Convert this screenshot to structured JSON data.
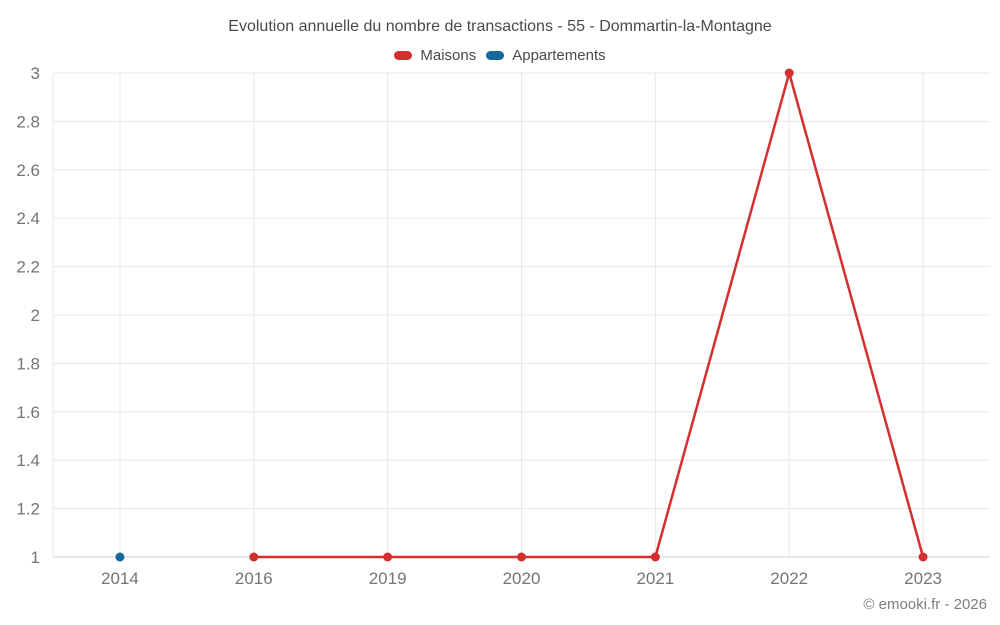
{
  "header": {
    "title": "Evolution annuelle du nombre de transactions - 55 - Dommartin-la-Montagne"
  },
  "footer": {
    "copyright": "© emooki.fr - 2026"
  },
  "chart_data": {
    "type": "line",
    "title": "Evolution annuelle du nombre de transactions - 55 - Dommartin-la-Montagne",
    "categories": [
      "2014",
      "2016",
      "2019",
      "2020",
      "2021",
      "2022",
      "2023"
    ],
    "series": [
      {
        "name": "Maisons",
        "color": "#d32f2f",
        "values": [
          null,
          1,
          1,
          1,
          1,
          3,
          1
        ]
      },
      {
        "name": "Appartements",
        "color": "#15689f",
        "values": [
          1,
          null,
          null,
          null,
          null,
          null,
          null
        ]
      }
    ],
    "xlabel": "",
    "ylabel": "",
    "ylim": [
      1,
      3
    ],
    "yticks": [
      1,
      1.2,
      1.4,
      1.6,
      1.8,
      2,
      2.2,
      2.4,
      2.6,
      2.8,
      3
    ],
    "grid": true,
    "legend_position": "top"
  },
  "style": {
    "grid_color": "#e8e8e8",
    "axis_line_color": "#d2d2d2",
    "tick_label_color": "#757575",
    "title_color": "#4a4a4a",
    "legend_text_color": "#4a4a4a",
    "background_color": "#ffffff"
  }
}
